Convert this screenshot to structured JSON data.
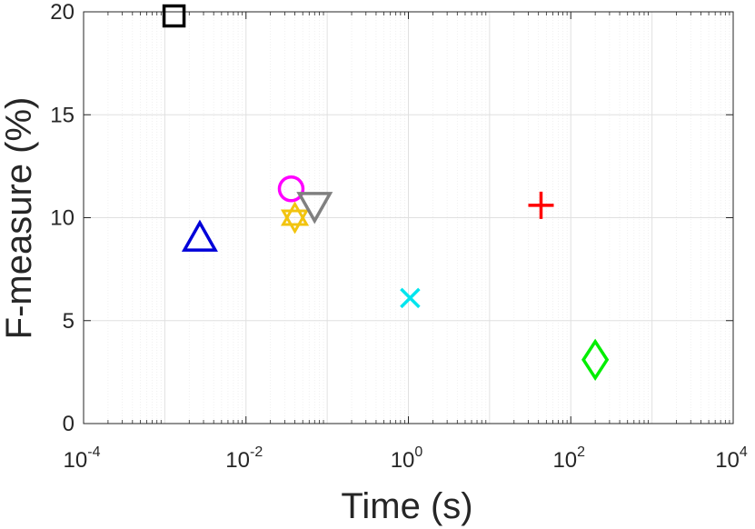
{
  "chart_data": {
    "type": "scatter",
    "title": "",
    "xlabel": "Time (s)",
    "ylabel": "F-measure (%)",
    "xscale": "log",
    "xlim": [
      0.0001,
      10000
    ],
    "ylim": [
      0,
      20
    ],
    "grid": true,
    "legend": "none",
    "x_ticks": [
      {
        "base": "10",
        "exp": "-4",
        "value": 0.0001
      },
      {
        "base": "10",
        "exp": "-2",
        "value": 0.01
      },
      {
        "base": "10",
        "exp": "0",
        "value": 1
      },
      {
        "base": "10",
        "exp": "2",
        "value": 100
      },
      {
        "base": "10",
        "exp": "4",
        "value": 10000
      }
    ],
    "y_ticks": [
      {
        "label": "0",
        "value": 0
      },
      {
        "label": "5",
        "value": 5
      },
      {
        "label": "10",
        "value": 10
      },
      {
        "label": "15",
        "value": 15
      },
      {
        "label": "20",
        "value": 20
      }
    ],
    "points": [
      {
        "x": 0.0013,
        "y": 19.8,
        "marker": "square",
        "color": "#000000"
      },
      {
        "x": 0.0027,
        "y": 9.0,
        "marker": "triangle-up",
        "color": "#0000d9"
      },
      {
        "x": 0.036,
        "y": 11.4,
        "marker": "circle",
        "color": "#ff00ff"
      },
      {
        "x": 0.04,
        "y": 10.0,
        "marker": "hexagram",
        "color": "#f2c40f"
      },
      {
        "x": 0.07,
        "y": 10.6,
        "marker": "triangle-down",
        "color": "#808080"
      },
      {
        "x": 1.05,
        "y": 6.1,
        "marker": "x",
        "color": "#00e5ee"
      },
      {
        "x": 43,
        "y": 10.6,
        "marker": "plus",
        "color": "#ff0000"
      },
      {
        "x": 200,
        "y": 3.1,
        "marker": "diamond",
        "color": "#00ee00"
      }
    ]
  }
}
